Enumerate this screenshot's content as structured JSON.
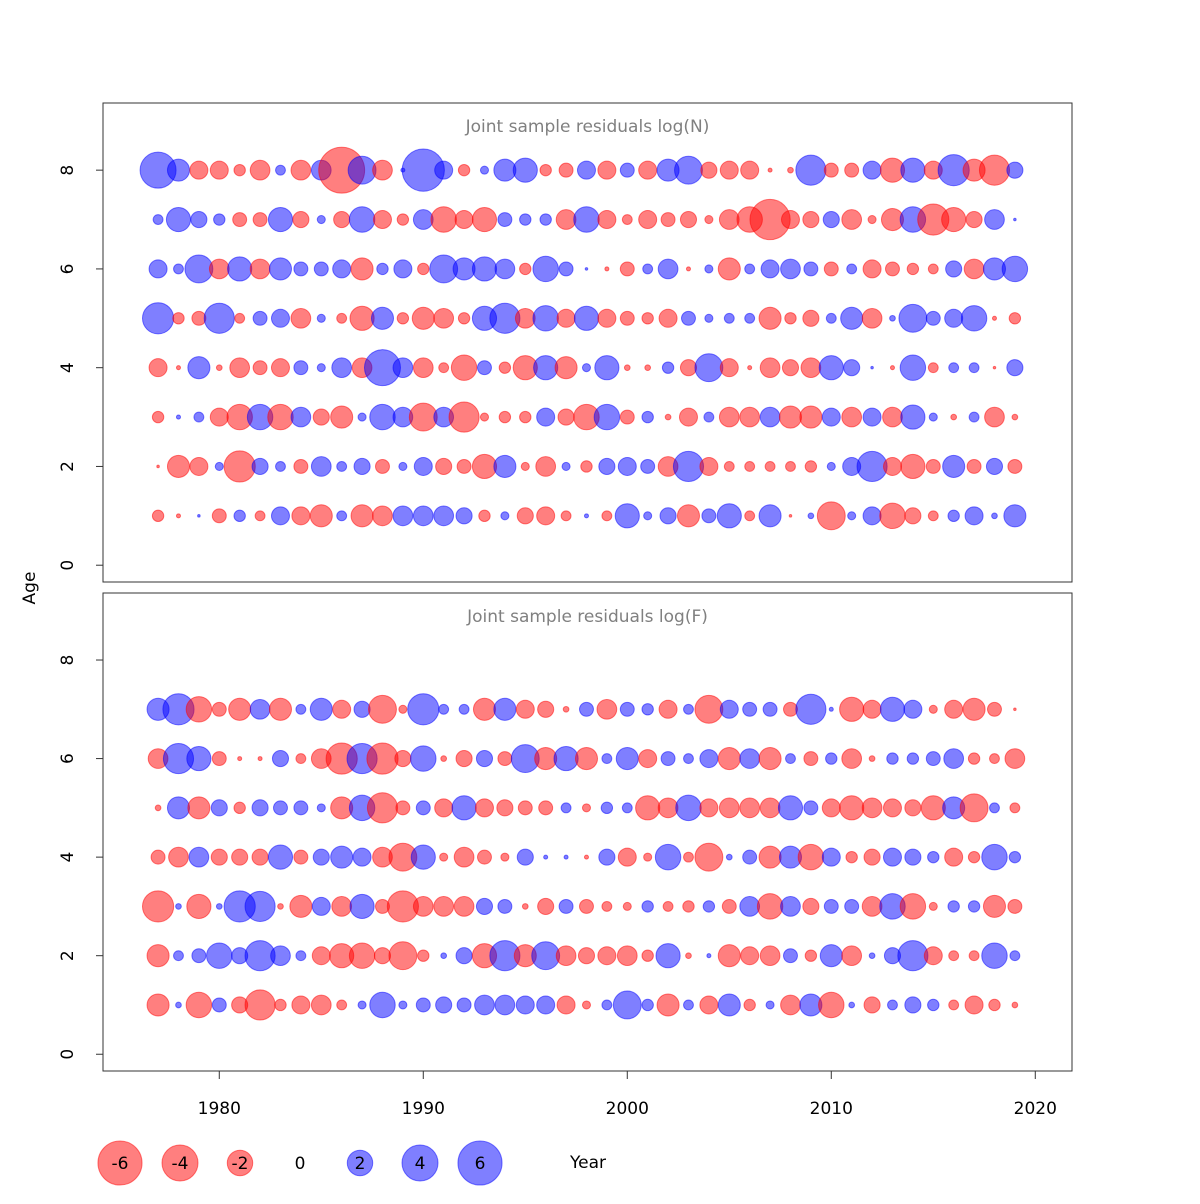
{
  "chart_data": {
    "type": "bubble",
    "xlabel": "Year",
    "ylabel": "Age",
    "positive_color": "#0000ff",
    "negative_color": "#ff0000",
    "xlim": [
      1974.3,
      2021.8
    ],
    "xticks": [
      1980,
      1990,
      2000,
      2010,
      2020
    ],
    "years": [
      1977,
      1978,
      1979,
      1980,
      1981,
      1982,
      1983,
      1984,
      1985,
      1986,
      1987,
      1988,
      1989,
      1990,
      1991,
      1992,
      1993,
      1994,
      1995,
      1996,
      1997,
      1998,
      1999,
      2000,
      2001,
      2002,
      2003,
      2004,
      2005,
      2006,
      2007,
      2008,
      2009,
      2010,
      2011,
      2012,
      2013,
      2014,
      2015,
      2016,
      2017,
      2018,
      2019
    ],
    "legend": {
      "values": [
        -6,
        -4,
        -2,
        0,
        2,
        4,
        6
      ]
    },
    "panels": [
      {
        "title": "Joint sample residuals log(N)",
        "ylim": [
          -0.34,
          9.36
        ],
        "yticks": [
          0,
          2,
          4,
          6,
          8
        ],
        "ages": [
          1,
          2,
          3,
          4,
          5,
          6,
          7,
          8
        ],
        "rows": [
          [
            -0.4,
            -0.05,
            0.02,
            -0.6,
            0.4,
            -0.3,
            1,
            -1,
            -1.5,
            0.3,
            -1.5,
            -1.2,
            1.2,
            1.2,
            1.2,
            0.8,
            -0.4,
            0.2,
            -0.8,
            -1,
            -0.3,
            0.05,
            -0.3,
            1.8,
            0.2,
            0.8,
            -1.5,
            0.6,
            1.8,
            -0.3,
            1.5,
            -0.02,
            0.1,
            -2.4,
            0.2,
            1,
            -2,
            -0.8,
            -0.3,
            0.4,
            1,
            0.1,
            1.5
          ],
          [
            -0.02,
            -1.5,
            -1,
            0.2,
            -3,
            0.8,
            0.3,
            -0.6,
            1.2,
            0.3,
            0.8,
            -0.6,
            0.2,
            1,
            -0.8,
            -0.6,
            -1.8,
            1.5,
            -0.2,
            -1.2,
            0.2,
            -0.4,
            0.8,
            1,
            0.6,
            -1.2,
            2.8,
            -1,
            -0.3,
            -0.3,
            -0.3,
            -0.3,
            -0.4,
            0.2,
            1,
            2.8,
            -1,
            -1.8,
            -0.6,
            1.5,
            -0.6,
            0.8,
            -0.6
          ],
          [
            -0.4,
            0.05,
            0.3,
            -1,
            -2,
            2,
            -2,
            1.2,
            -0.8,
            -1.5,
            0.2,
            2,
            1.2,
            -2.4,
            1.2,
            -2.8,
            -0.2,
            -0.4,
            -0.4,
            1,
            -0.8,
            -2,
            2,
            -0.6,
            0.4,
            -0.1,
            -1,
            0.3,
            -1.2,
            -1.2,
            1.2,
            -1.5,
            -1.5,
            1,
            -1.2,
            1,
            -1.2,
            1.8,
            0.2,
            -0.1,
            0.3,
            -1.2,
            -0.1
          ],
          [
            -1,
            -0.05,
            1.5,
            -0.1,
            -1.2,
            -0.6,
            -1,
            0.6,
            0.2,
            1.2,
            -1.2,
            4,
            1.2,
            -1.2,
            -0.3,
            -2,
            0.6,
            -0.4,
            -1.8,
            1.8,
            -1.5,
            0.2,
            1.8,
            -0.1,
            -0.1,
            0.4,
            -0.8,
            2.4,
            -1,
            -0.05,
            -1.2,
            -0.8,
            -1.2,
            1.8,
            0.8,
            0.02,
            -0.05,
            2,
            -0.3,
            0.3,
            0.3,
            -0.02,
            0.8
          ],
          [
            3,
            -0.4,
            -0.6,
            2.8,
            -0.3,
            0.6,
            1,
            -1.2,
            0.2,
            -0.3,
            -1.8,
            1.5,
            -0.4,
            -1.5,
            -1.2,
            -0.4,
            1.8,
            2.8,
            -1.2,
            2,
            -1,
            1.8,
            -1,
            -0.6,
            -0.4,
            -1,
            0.6,
            0.2,
            0.3,
            0.3,
            -1.5,
            -0.4,
            -0.8,
            0.3,
            1.5,
            -1.2,
            0.1,
            2.4,
            0.6,
            1,
            2,
            -0.05,
            -0.4
          ],
          [
            1,
            0.3,
            2.4,
            -1.2,
            1.8,
            -1.2,
            1.5,
            0.6,
            0.6,
            1,
            -1.5,
            0.4,
            1,
            -0.4,
            2.4,
            1.5,
            1.8,
            1.2,
            -0.4,
            2,
            0.6,
            0.02,
            -0.05,
            -0.6,
            0.3,
            1.2,
            -0.05,
            0.2,
            -1.5,
            0.3,
            1,
            1.2,
            0.6,
            -0.6,
            0.3,
            -1,
            -0.6,
            -0.4,
            -0.3,
            0.8,
            -1.2,
            1.5,
            2
          ],
          [
            0.3,
            1.8,
            0.8,
            0.4,
            -0.6,
            -0.6,
            1.8,
            -0.8,
            0.2,
            -0.8,
            2,
            -1,
            -0.4,
            1.2,
            -2,
            -1,
            -1.8,
            0.6,
            0.4,
            0.4,
            -1.2,
            2,
            -1,
            -0.3,
            -1,
            -0.6,
            -0.8,
            -0.2,
            -1.2,
            -2,
            -5,
            -1,
            -0.8,
            0.8,
            -1.2,
            -0.2,
            -1.5,
            2,
            -3,
            -1.8,
            -0.8,
            1.2,
            0.02
          ],
          [
            4,
            1.5,
            -1,
            -1,
            -0.4,
            -1.2,
            0.3,
            -1.2,
            1.2,
            -6.5,
            2.4,
            -1.2,
            0.05,
            5.5,
            1,
            -0.4,
            0.2,
            1.5,
            1.8,
            -0.4,
            -0.6,
            1,
            -1,
            0.6,
            -1,
            1.5,
            2.4,
            -0.8,
            -1,
            -1,
            -0.05,
            -0.1,
            2.8,
            -0.6,
            -0.6,
            1,
            -1.8,
            1.8,
            -1,
            3,
            -1.5,
            -2.8,
            0.8
          ]
        ]
      },
      {
        "title": "Joint sample residuals log(F)",
        "ylim": [
          -0.34,
          9.36
        ],
        "yticks": [
          0,
          2,
          4,
          6,
          8
        ],
        "ages": [
          1,
          2,
          3,
          4,
          5,
          6,
          7
        ],
        "rows": [
          [
            -1.5,
            0.1,
            -2,
            0.6,
            -0.8,
            -2.8,
            -0.4,
            -1,
            -1.2,
            -0.3,
            0.2,
            2,
            0.2,
            0.6,
            0.8,
            0.6,
            1.2,
            1.2,
            1,
            1,
            -1,
            -0.2,
            0.3,
            2.4,
            0.4,
            -1.5,
            0.3,
            -1,
            1.5,
            -0.4,
            0.2,
            -1.2,
            1.5,
            -2,
            0.1,
            -0.8,
            0.3,
            0.8,
            0.4,
            -0.3,
            -1,
            -0.4,
            -0.1
          ],
          [
            -1.5,
            0.3,
            0.6,
            2,
            0.8,
            2.8,
            1.2,
            0.3,
            -1,
            -1.8,
            -2,
            -0.8,
            -2.4,
            -0.4,
            0.1,
            0.8,
            -1.8,
            2.8,
            -1.5,
            2.4,
            -1.2,
            -0.8,
            -1,
            -1.2,
            -0.4,
            1.8,
            -0.1,
            0.05,
            -1.5,
            -1,
            -1.2,
            0.6,
            -0.4,
            1.5,
            -1.2,
            0.1,
            0.8,
            2.8,
            -1,
            -0.3,
            -0.3,
            2,
            0.3
          ],
          [
            -3,
            0.1,
            -1.8,
            0.1,
            3,
            2.8,
            -0.1,
            -1.5,
            1,
            -1.2,
            1.8,
            -0.6,
            -3,
            -1.2,
            -1.2,
            -1.2,
            0.8,
            0.6,
            -0.1,
            -0.8,
            0.6,
            -0.6,
            -0.3,
            -0.2,
            0.4,
            -0.3,
            -0.4,
            0.4,
            -0.6,
            1.2,
            -2,
            1.2,
            -0.8,
            0.6,
            0.6,
            -1.2,
            2,
            -2,
            -0.2,
            0.4,
            0.4,
            -1.5,
            -0.6
          ],
          [
            -0.6,
            -1.2,
            1.2,
            -0.8,
            -0.8,
            -0.8,
            1.8,
            -0.6,
            0.8,
            1.5,
            1,
            -1.2,
            -2.4,
            1.8,
            -0.2,
            -1.2,
            -0.6,
            -0.2,
            0.8,
            0.05,
            0.05,
            -0.05,
            0.8,
            -1,
            -0.2,
            2,
            -0.3,
            -2.4,
            0.1,
            0.6,
            -1.5,
            1.5,
            -2,
            1,
            -0.4,
            -0.8,
            1,
            0.8,
            0.4,
            -1,
            -0.4,
            2,
            0.4
          ],
          [
            -0.1,
            1.5,
            -1.5,
            0.8,
            -0.4,
            0.8,
            0.6,
            0.6,
            0.2,
            -1.5,
            2,
            -2.8,
            -0.6,
            0.6,
            -1,
            1.8,
            -1,
            -0.8,
            -0.6,
            -0.6,
            0.3,
            -0.2,
            0.4,
            0.3,
            -1.8,
            -1.2,
            2,
            -1,
            -1.2,
            -1.2,
            -1.2,
            1.8,
            0.6,
            -1,
            -1.8,
            -1.2,
            -1,
            -0.8,
            -1.8,
            1.5,
            -2.4,
            0.3,
            -0.3
          ],
          [
            -1.2,
            2.8,
            1.8,
            -0.6,
            -0.05,
            -0.05,
            0.8,
            -0.3,
            -1.2,
            -3,
            2.8,
            -3,
            -0.8,
            2,
            -0.1,
            -0.8,
            0.8,
            -0.6,
            2.4,
            -1.5,
            1.8,
            -1.5,
            0.3,
            1.5,
            -1,
            0.6,
            0.3,
            1,
            -1.5,
            1.2,
            -1.5,
            0.3,
            -0.6,
            0.4,
            -1.2,
            -0.1,
            0.4,
            0.4,
            0.6,
            1.2,
            -0.4,
            -0.3,
            -1.2
          ],
          [
            1.5,
            3,
            -2,
            -0.6,
            -1.5,
            1.2,
            -1.5,
            0.3,
            1.5,
            -1,
            0.8,
            -2.4,
            -0.2,
            3,
            0.3,
            0.3,
            -1.5,
            1.5,
            -1,
            -0.8,
            -0.1,
            0.6,
            -1.2,
            0.6,
            0.4,
            -1,
            0.3,
            -2.4,
            1,
            0.6,
            0.6,
            -0.6,
            2.8,
            0.05,
            -1.8,
            -1,
            1.8,
            1,
            -0.2,
            -1,
            -1.5,
            -0.6,
            -0.02
          ]
        ]
      }
    ]
  }
}
